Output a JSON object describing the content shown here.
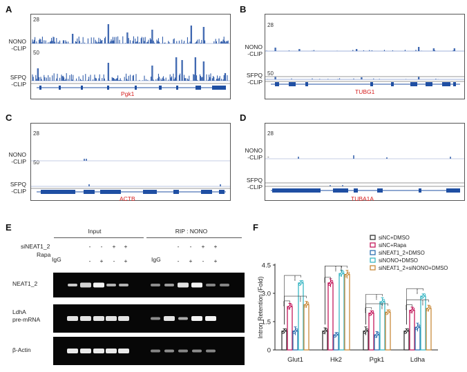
{
  "panels": {
    "A": {
      "letter": "A",
      "gene": "Pgk1",
      "scale_top": "28",
      "scale_mid": "50",
      "nono_label": [
        "NONO",
        "-CLIP"
      ],
      "sfpq_label": [
        "SFPQ",
        "-CLIP"
      ]
    },
    "B": {
      "letter": "B",
      "gene": "TUBG1",
      "scale_top": "28",
      "scale_mid": "50",
      "nono_label": [
        "NONO",
        "-CLIP"
      ],
      "sfpq_label": [
        "SFPQ",
        "-CLIP"
      ]
    },
    "C": {
      "letter": "C",
      "gene": "ACTB",
      "scale_top": "28",
      "scale_mid": "50",
      "nono_label": [
        "NONO",
        "-CLIP"
      ],
      "sfpq_label": [
        "SFPQ",
        "-CLIP"
      ]
    },
    "D": {
      "letter": "D",
      "gene": "TUBA1A",
      "scale_top": "28",
      "scale_mid": "-",
      "nono_label": [
        "NONO",
        "-CLIP"
      ],
      "sfpq_label": [
        "SFPQ",
        "-CLIP"
      ]
    }
  },
  "panel_e": {
    "letter": "E",
    "group_input": "Input",
    "group_rip": "RIP : NONO",
    "row_sineat": "siNEAT1_2",
    "row_rapa": "Rapa",
    "igg": "IgG",
    "sineat_signs": [
      "-",
      "-",
      "+",
      "+"
    ],
    "rapa_signs": [
      "-",
      "+",
      "-",
      "+"
    ],
    "gel_labels": [
      [
        "NEAT1_2"
      ],
      [
        "LdhA",
        "pre-mRNA"
      ],
      [
        "β-Actin"
      ]
    ]
  },
  "panel_f": {
    "letter": "F",
    "chart_data": {
      "type": "bar",
      "ylabel": "Intron Retention (Fold)",
      "ylim": [
        0,
        4.5
      ],
      "yticks": [
        "0",
        "1.5",
        "3.0",
        "4.5"
      ],
      "categories": [
        "Glut1",
        "Hk2",
        "Pgk1",
        "Ldha"
      ],
      "series": [
        {
          "name": "siNC+DMSO",
          "color": "#333333",
          "values": [
            1.0,
            1.0,
            1.0,
            1.0
          ]
        },
        {
          "name": "siNC+Rapa",
          "color": "#c2185b",
          "values": [
            2.3,
            3.55,
            1.95,
            2.1
          ]
        },
        {
          "name": "siNEAT1_2+DMSO",
          "color": "#2c6fb0",
          "values": [
            1.0,
            0.8,
            0.8,
            1.2
          ]
        },
        {
          "name": "siNONO+DMSO",
          "color": "#39b6c4",
          "values": [
            3.55,
            4.05,
            2.55,
            2.85
          ]
        },
        {
          "name": "siNEAT1_2+siNONO+DMSO",
          "color": "#c98a3a",
          "values": [
            2.4,
            4.0,
            2.0,
            2.2
          ]
        }
      ],
      "significance": "****"
    }
  }
}
